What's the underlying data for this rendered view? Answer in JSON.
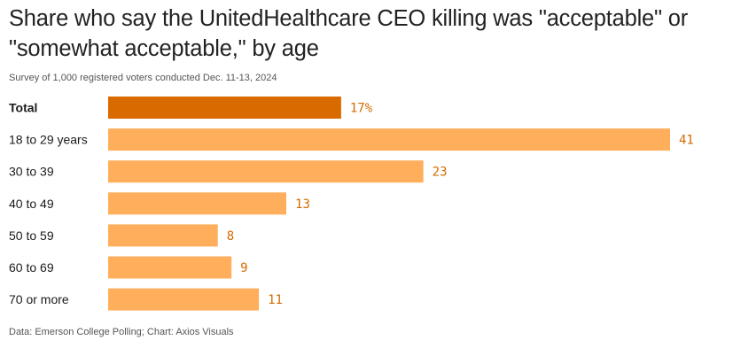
{
  "title": "Share who say the UnitedHealthcare CEO killing was \"acceptable\" or \"somewhat acceptable,\" by age",
  "subtitle": "Survey of 1,000 registered voters conducted Dec. 11-13, 2024",
  "source": "Data: Emerson College Polling; Chart: Axios Visuals",
  "colors": {
    "highlight": "#d96a00",
    "bar": "#ffae5c",
    "value_text": "#d36b00"
  },
  "chart_data": {
    "type": "bar",
    "orientation": "horizontal",
    "categories": [
      "Total",
      "18 to 29 years",
      "30 to 39",
      "40 to 49",
      "50 to 59",
      "60 to 69",
      "70 or more"
    ],
    "values": [
      17,
      41,
      23,
      13,
      8,
      9,
      11
    ],
    "value_labels": [
      "17%",
      "41",
      "23",
      "13",
      "8",
      "9",
      "11"
    ],
    "highlight_index": 0,
    "xlim": [
      0,
      41
    ],
    "grid": false,
    "legend": "none"
  }
}
